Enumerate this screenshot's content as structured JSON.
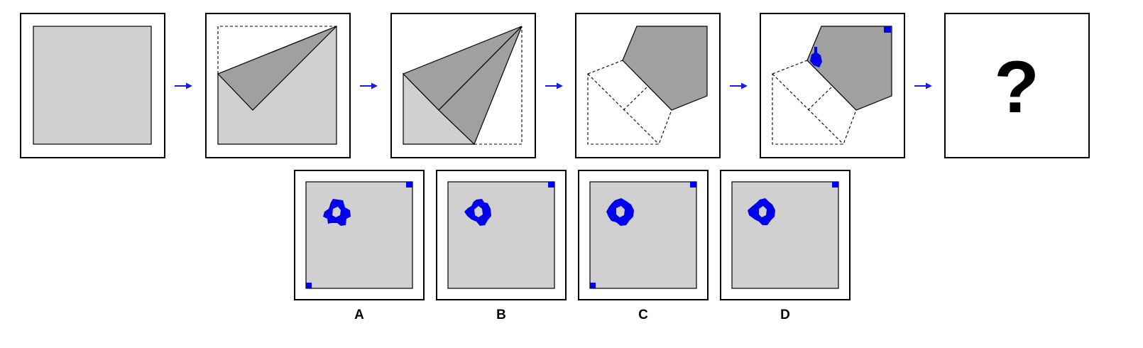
{
  "puzzle": {
    "question_mark": "?",
    "option_labels": [
      "A",
      "B",
      "C",
      "D"
    ],
    "colors": {
      "paper": "#d0d0d0",
      "folded_layer": "#a0a0a0",
      "punch": "#0000ee",
      "arrow": "#1a1aee",
      "frame": "#000000"
    }
  }
}
